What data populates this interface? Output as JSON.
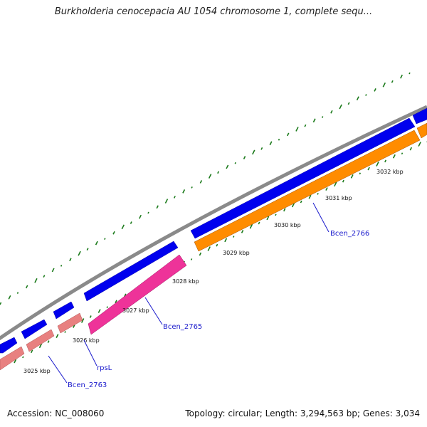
{
  "title": "Burkholderia cenocepacia AU 1054 chromosome 1, complete sequ...",
  "footer": {
    "accession": "Accession: NC_008060",
    "summary": "Topology: circular; Length: 3,294,563 bp; Genes: 3,034"
  },
  "colors": {
    "backbone": "#8a8a8a",
    "cds_forward": "#0000ee",
    "cds_reverse_hypothetical": "#ee3399",
    "cds_reverse_light": "#e88080",
    "cds_reverse_orange": "#ff8c00",
    "gc_ticks": "#1a7a1a",
    "gene_label": "#1a1acc"
  },
  "scale_ticks": [
    "3025 kbp",
    "3026 kbp",
    "3027 kbp",
    "3028 kbp",
    "3029 kbp",
    "3030 kbp",
    "3031 kbp",
    "3032 kbp"
  ],
  "gene_labels": [
    "Bcen_2763",
    "rpsL",
    "Bcen_2765",
    "Bcen_2766"
  ]
}
